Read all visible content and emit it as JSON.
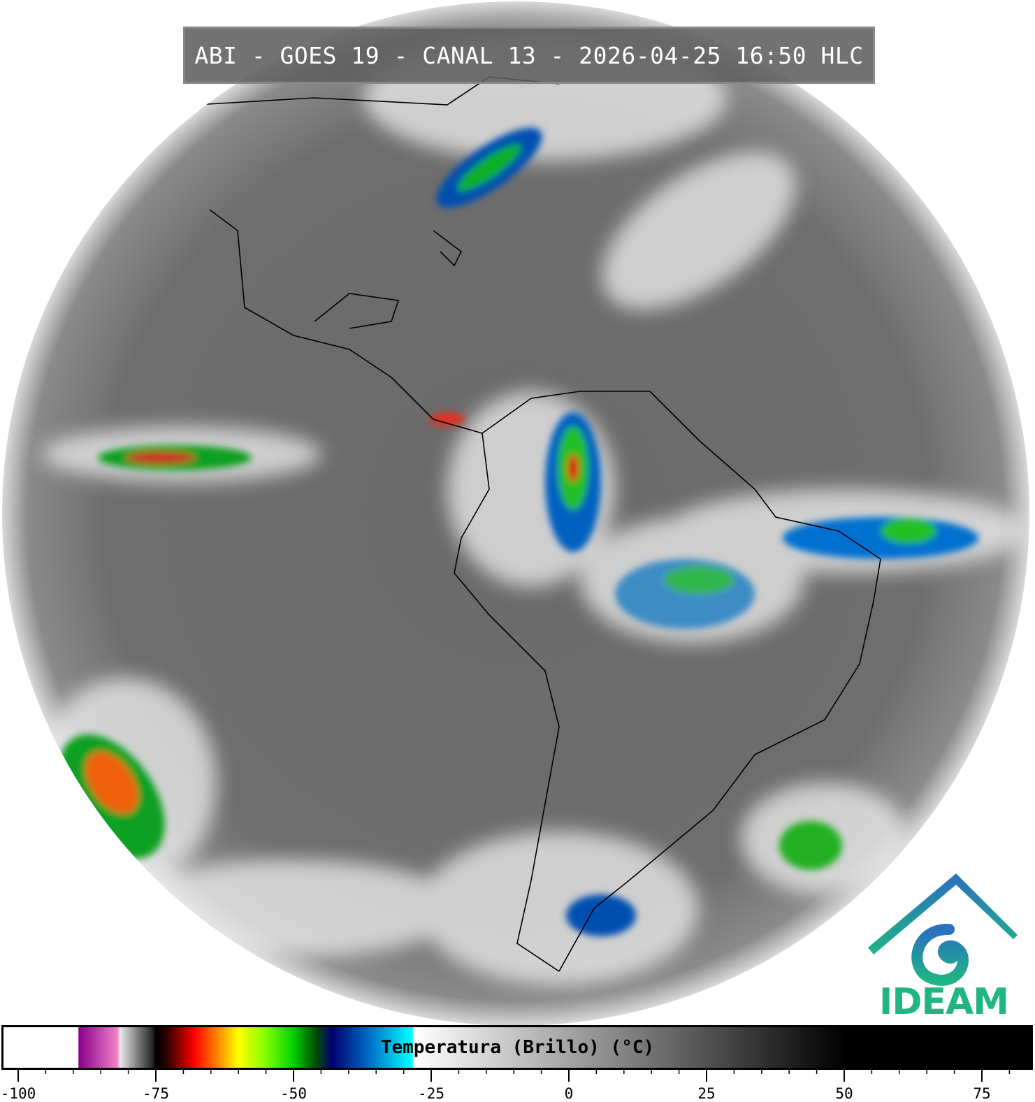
{
  "title": "ABI - GOES 19 - CANAL 13 - 2026-04-25 16:50 HLC",
  "logo": {
    "text": "IDEAM",
    "colors": [
      "#2a6fc0",
      "#1fb585"
    ]
  },
  "colorbar": {
    "label": "Temperatura (Brillo) (°C)",
    "range": [
      -100,
      84
    ],
    "major_ticks": [
      "-100",
      "-75",
      "-50",
      "-25",
      "0",
      "25",
      "50",
      "75"
    ],
    "minor_step": 5,
    "stops": [
      {
        "t": -100,
        "c": "#ffffff"
      },
      {
        "t": -89.1,
        "c": "#ffffff"
      },
      {
        "t": -89,
        "c": "#8a008a"
      },
      {
        "t": -82,
        "c": "#f080c8"
      },
      {
        "t": -81.5,
        "c": "#e8e8e8"
      },
      {
        "t": -75.5,
        "c": "#222222"
      },
      {
        "t": -75,
        "c": "#000000"
      },
      {
        "t": -73,
        "c": "#300000"
      },
      {
        "t": -68,
        "c": "#ff0000"
      },
      {
        "t": -64,
        "c": "#ff8000"
      },
      {
        "t": -60,
        "c": "#ffff00"
      },
      {
        "t": -55,
        "c": "#80ff00"
      },
      {
        "t": -50,
        "c": "#00d000"
      },
      {
        "t": -46,
        "c": "#005000"
      },
      {
        "t": -43,
        "c": "#000070"
      },
      {
        "t": -37,
        "c": "#0060c0"
      },
      {
        "t": -28.5,
        "c": "#00ffff"
      },
      {
        "t": -28,
        "c": "#ffffff"
      },
      {
        "t": 50,
        "c": "#000000"
      },
      {
        "t": 84,
        "c": "#000000"
      }
    ]
  }
}
